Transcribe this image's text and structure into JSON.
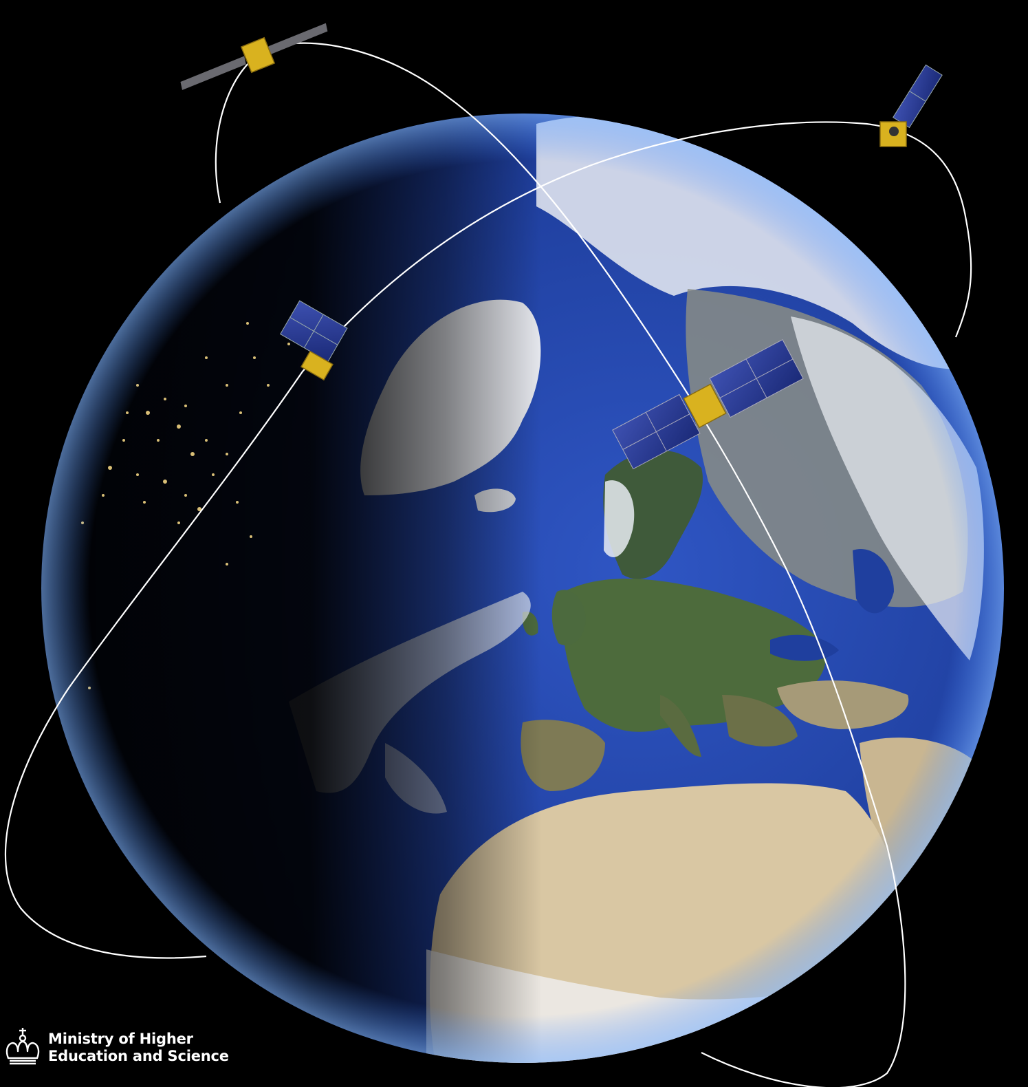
{
  "image": {
    "subject": "satellites-orbiting-earth",
    "colors": {
      "space": "#000000",
      "ocean": "#1e3f9c",
      "orbit_line": "#ffffff",
      "satellite_body": "#d9b21f",
      "solar_panel": "#2a3a8f"
    }
  },
  "logo": {
    "icon": "crown-icon",
    "line1": "Ministry of Higher",
    "line2": "Education and Science"
  }
}
